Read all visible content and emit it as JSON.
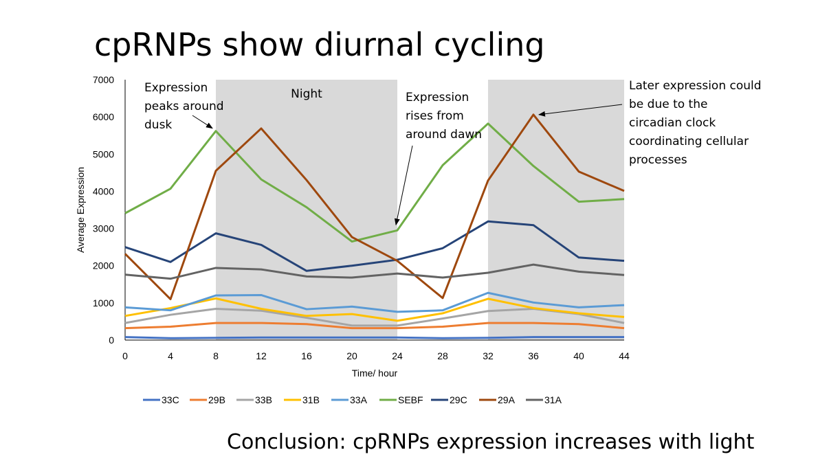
{
  "slide": {
    "title": "cpRNPs show diurnal cycling",
    "conclusion": "Conclusion: cpRNPs expression increases with light"
  },
  "chart_data": {
    "type": "line",
    "xlabel": "Time/ hour",
    "ylabel": "Average Expression",
    "x": [
      0,
      4,
      8,
      12,
      16,
      20,
      24,
      28,
      32,
      36,
      40,
      44
    ],
    "xlim": [
      0,
      44
    ],
    "ylim": [
      0,
      7000
    ],
    "yticks": [
      0,
      1000,
      2000,
      3000,
      4000,
      5000,
      6000,
      7000
    ],
    "night_periods": [
      [
        8,
        24
      ],
      [
        32,
        44
      ]
    ],
    "night_label": "Night",
    "legend_position": "bottom",
    "series": [
      {
        "name": "33C",
        "color": "#4472C4",
        "values": [
          80,
          50,
          60,
          70,
          70,
          70,
          70,
          50,
          60,
          80,
          80,
          80
        ]
      },
      {
        "name": "29B",
        "color": "#ED7D31",
        "values": [
          320,
          360,
          460,
          460,
          430,
          320,
          320,
          360,
          460,
          460,
          430,
          320
        ]
      },
      {
        "name": "33B",
        "color": "#A5A5A5",
        "values": [
          460,
          680,
          840,
          790,
          600,
          390,
          390,
          580,
          780,
          840,
          700,
          460
        ]
      },
      {
        "name": "31B",
        "color": "#FFC000",
        "values": [
          650,
          860,
          1120,
          840,
          650,
          700,
          520,
          720,
          1110,
          860,
          720,
          620
        ]
      },
      {
        "name": "33A",
        "color": "#5B9BD5",
        "values": [
          880,
          800,
          1200,
          1210,
          830,
          900,
          760,
          800,
          1270,
          1010,
          880,
          940
        ]
      },
      {
        "name": "SEBF",
        "color": "#70AD47",
        "values": [
          3410,
          4070,
          5620,
          4320,
          3570,
          2650,
          2950,
          4700,
          5820,
          4680,
          3720,
          3790
        ]
      },
      {
        "name": "29C",
        "color": "#264478",
        "values": [
          2500,
          2100,
          2870,
          2560,
          1860,
          2000,
          2160,
          2470,
          3190,
          3090,
          2220,
          2130
        ]
      },
      {
        "name": "29A",
        "color": "#9E480E",
        "values": [
          2320,
          1100,
          4550,
          5690,
          4300,
          2770,
          2130,
          1130,
          4290,
          6060,
          4530,
          4010
        ]
      },
      {
        "name": "31A",
        "color": "#636363",
        "values": [
          1760,
          1650,
          1940,
          1900,
          1710,
          1680,
          1790,
          1680,
          1810,
          2030,
          1840,
          1750
        ]
      }
    ],
    "annotations": [
      {
        "lines": [
          "Expression",
          "peaks around",
          "dusk"
        ],
        "target_x": 8,
        "target_y": 5620
      },
      {
        "lines": [
          "Expression",
          "rises from",
          "around dawn"
        ],
        "target_x": 24,
        "target_y": 2950
      },
      {
        "lines": [
          "Later expression could",
          "be due to the",
          "circadian clock",
          "coordinating cellular",
          "processes"
        ],
        "target_x": 36,
        "target_y": 6060
      }
    ]
  }
}
